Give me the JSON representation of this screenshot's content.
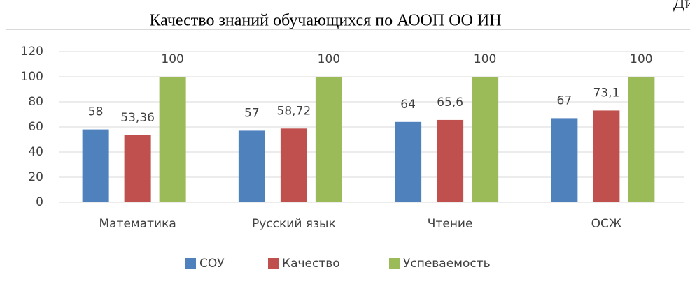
{
  "chart_data": {
    "type": "bar",
    "title": "Качество знаний обучающихся по АООП ОО ИН",
    "annotations": [
      "Ди"
    ],
    "categories": [
      "Математика",
      "Русский язык",
      "Чтение",
      "ОСЖ"
    ],
    "series": [
      {
        "name": "СОУ",
        "color": "#4f81bd",
        "values": [
          58,
          57,
          64,
          67
        ],
        "value_labels": [
          "58",
          "57",
          "64",
          "67"
        ]
      },
      {
        "name": "Качество",
        "color": "#c0504d",
        "values": [
          53.36,
          58.72,
          65.6,
          73.1
        ],
        "value_labels": [
          "53,36",
          "58,72",
          "65,6",
          "73,1"
        ]
      },
      {
        "name": "Успеваемость",
        "color": "#9bbb59",
        "values": [
          100,
          100,
          100,
          100
        ],
        "value_labels": [
          "100",
          "100",
          "100",
          "100"
        ]
      }
    ],
    "ylim": [
      0,
      120
    ],
    "yticks": [
      0,
      20,
      40,
      60,
      80,
      100,
      120
    ],
    "grid": true,
    "legend": "bottom"
  }
}
